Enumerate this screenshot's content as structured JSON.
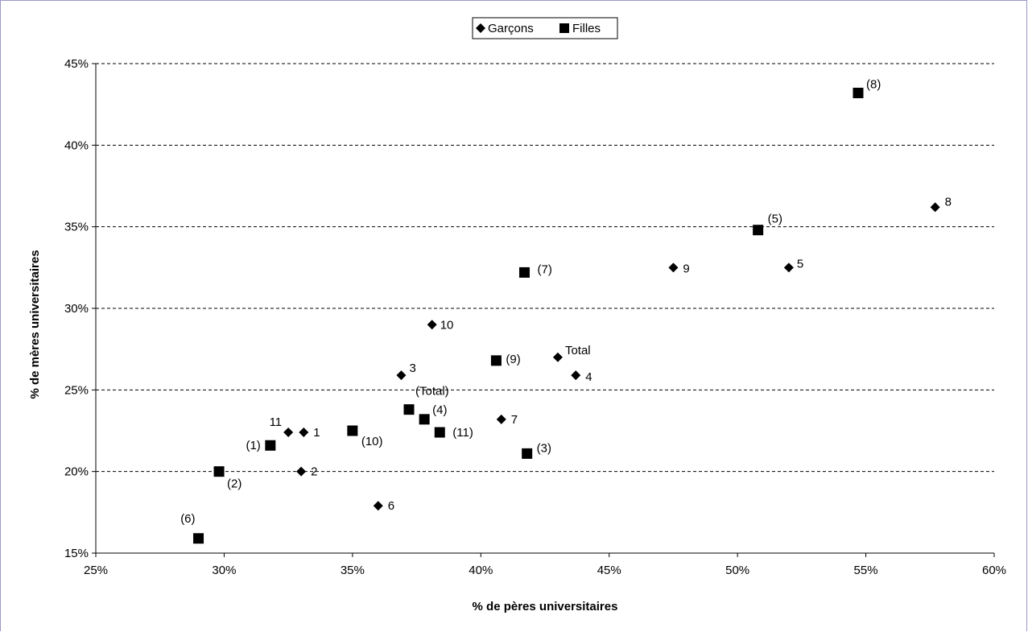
{
  "chart_data": {
    "type": "scatter",
    "xlabel": "% de pères universitaires",
    "ylabel": "% de mères universitaires",
    "xlim": [
      0.25,
      0.6
    ],
    "ylim": [
      0.15,
      0.45
    ],
    "x_ticks": [
      0.25,
      0.3,
      0.35,
      0.4,
      0.45,
      0.5,
      0.55,
      0.6
    ],
    "x_tick_labels": [
      "25%",
      "30%",
      "35%",
      "40%",
      "45%",
      "50%",
      "55%",
      "60%"
    ],
    "y_ticks": [
      0.15,
      0.2,
      0.25,
      0.3,
      0.35,
      0.4,
      0.45
    ],
    "y_tick_labels": [
      "15%",
      "20%",
      "25%",
      "30%",
      "35%",
      "40%",
      "45%"
    ],
    "grid": "horizontal dashed",
    "legend_position": "top-center",
    "series": [
      {
        "name": "Garçons",
        "marker": "diamond",
        "color": "#000000",
        "points": [
          {
            "x": 0.331,
            "y": 0.224,
            "label": "1"
          },
          {
            "x": 0.33,
            "y": 0.2,
            "label": "2"
          },
          {
            "x": 0.369,
            "y": 0.259,
            "label": "3"
          },
          {
            "x": 0.437,
            "y": 0.259,
            "label": "4"
          },
          {
            "x": 0.52,
            "y": 0.325,
            "label": "5"
          },
          {
            "x": 0.36,
            "y": 0.179,
            "label": "6"
          },
          {
            "x": 0.408,
            "y": 0.232,
            "label": "7"
          },
          {
            "x": 0.577,
            "y": 0.362,
            "label": "8"
          },
          {
            "x": 0.475,
            "y": 0.325,
            "label": "9"
          },
          {
            "x": 0.381,
            "y": 0.29,
            "label": "10"
          },
          {
            "x": 0.325,
            "y": 0.224,
            "label": "11"
          },
          {
            "x": 0.43,
            "y": 0.27,
            "label": "Total"
          }
        ]
      },
      {
        "name": "Filles",
        "marker": "square",
        "color": "#000000",
        "points": [
          {
            "x": 0.318,
            "y": 0.216,
            "label": "(1)"
          },
          {
            "x": 0.298,
            "y": 0.2,
            "label": "(2)"
          },
          {
            "x": 0.418,
            "y": 0.211,
            "label": "(3)"
          },
          {
            "x": 0.378,
            "y": 0.232,
            "label": "(4)"
          },
          {
            "x": 0.508,
            "y": 0.348,
            "label": "(5)"
          },
          {
            "x": 0.29,
            "y": 0.159,
            "label": "(6)"
          },
          {
            "x": 0.417,
            "y": 0.322,
            "label": "(7)"
          },
          {
            "x": 0.547,
            "y": 0.432,
            "label": "(8)"
          },
          {
            "x": 0.406,
            "y": 0.268,
            "label": "(9)"
          },
          {
            "x": 0.35,
            "y": 0.225,
            "label": "(10)"
          },
          {
            "x": 0.384,
            "y": 0.224,
            "label": "(11)"
          },
          {
            "x": 0.372,
            "y": 0.238,
            "label": "(Total)"
          }
        ]
      }
    ]
  }
}
